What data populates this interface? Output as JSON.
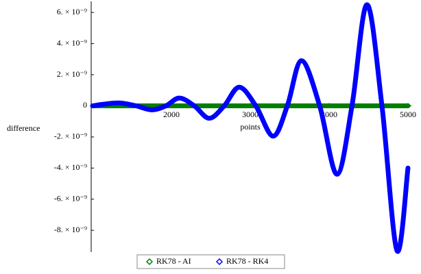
{
  "chart_data": {
    "type": "line",
    "x_label": "points",
    "y_label": "difference",
    "xlim": [
      1000,
      5000
    ],
    "ylim": [
      -9.4e-09,
      6.8e-09
    ],
    "xticks": [
      2000,
      3000,
      4000,
      5000
    ],
    "yticks": [
      {
        "value": -8e-09,
        "label": "-8. × 10⁻⁹"
      },
      {
        "value": -6e-09,
        "label": "-6. × 10⁻⁹"
      },
      {
        "value": -4e-09,
        "label": "-4. × 10⁻⁹"
      },
      {
        "value": -2e-09,
        "label": "-2. × 10⁻⁹"
      },
      0,
      {
        "value": 2e-09,
        "label": "2. × 10⁻⁹"
      },
      {
        "value": 4e-09,
        "label": "4. × 10⁻⁹"
      },
      {
        "value": 6e-09,
        "label": "6. × 10⁻⁹"
      }
    ],
    "series": [
      {
        "name": "RK78 - AI",
        "color": "#008000",
        "x": [
          1000,
          5000
        ],
        "values": [
          0,
          0
        ]
      },
      {
        "name": "RK78 - RK4",
        "color": "#0000ff",
        "x": [
          1000,
          1170,
          1350,
          1550,
          1750,
          1930,
          2100,
          2290,
          2480,
          2670,
          2860,
          3070,
          3290,
          3470,
          3650,
          3880,
          4100,
          4290,
          4480,
          4670,
          4860,
          5000
        ],
        "values": [
          0,
          1.2e-10,
          1.8e-10,
          0,
          -2.6e-10,
          0,
          5e-10,
          0,
          -8e-10,
          0,
          1.2e-09,
          0,
          -1.95e-09,
          0,
          2.9e-09,
          0,
          -4.4e-09,
          0,
          6.5e-09,
          0,
          -9.3e-09,
          -4e-09
        ]
      }
    ]
  }
}
